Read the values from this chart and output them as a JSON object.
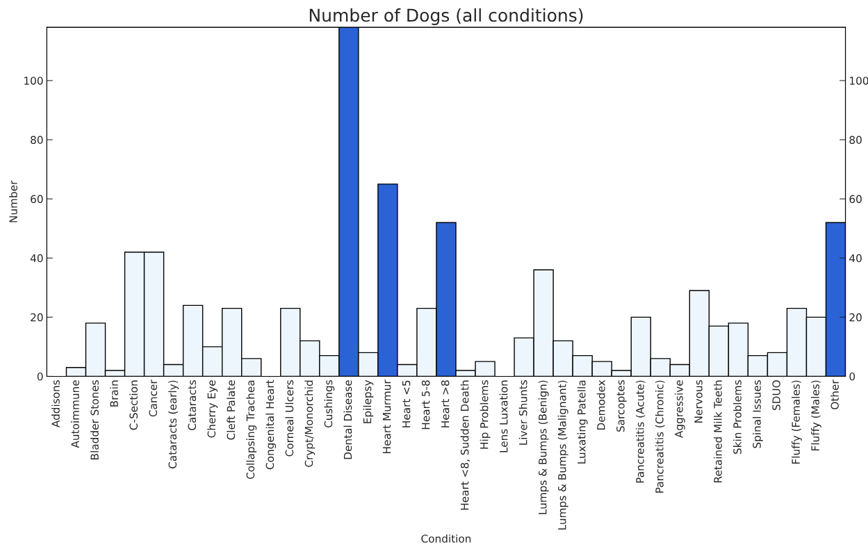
{
  "chart_data": {
    "type": "bar",
    "title": "Number of Dogs (all conditions)",
    "xlabel": "Condition",
    "ylabel": "Number",
    "categories": [
      "Addisons",
      "Autoimmune",
      "Bladder Stones",
      "Brain",
      "C-Section",
      "Cancer",
      "Cataracts (early)",
      "Cataracts",
      "Cherry Eye",
      "Cleft Palate",
      "Collapsing Trachea",
      "Congenital Heart",
      "Corneal Ulcers",
      "Crypt/Monorchid",
      "Cushings",
      "Dental Disease",
      "Epilepsy",
      "Heart Murmur",
      "Heart <5",
      "Heart 5-8",
      "Heart >8",
      "Heart <8, Sudden Death",
      "Hip Problems",
      "Lens Luxation",
      "Liver Shunts",
      "Lumps & Bumps (Benign)",
      "Lumps & Bumps (Malignant)",
      "Luxating Patella",
      "Demodex",
      "Sarcoptes",
      "Pancreatitis (Acute)",
      "Pancreatitis (Chronic)",
      "Aggressive",
      "Nervous",
      "Retained Milk Teeth",
      "Skin Problems",
      "Spinal Issues",
      "SDUO",
      "Fluffy (Females)",
      "Fluffy (Males)",
      "Other"
    ],
    "values": [
      0,
      3,
      18,
      2,
      42,
      42,
      4,
      24,
      10,
      23,
      6,
      0,
      23,
      12,
      7,
      118,
      8,
      65,
      4,
      23,
      52,
      2,
      5,
      0,
      13,
      36,
      12,
      7,
      5,
      2,
      20,
      6,
      4,
      29,
      17,
      18,
      7,
      8,
      23,
      20,
      52
    ],
    "colors": [
      "#eef6fd",
      "#eef6fd",
      "#eef6fd",
      "#eef6fd",
      "#eef6fd",
      "#eef6fd",
      "#eef6fd",
      "#eef6fd",
      "#eef6fd",
      "#eef6fd",
      "#eef6fd",
      "#eef6fd",
      "#eef6fd",
      "#eef6fd",
      "#eef6fd",
      "#2b62d6",
      "#eef6fd",
      "#2b62d6",
      "#eef6fd",
      "#eef6fd",
      "#2b62d6",
      "#eef6fd",
      "#eef6fd",
      "#eef6fd",
      "#eef6fd",
      "#eef6fd",
      "#eef6fd",
      "#eef6fd",
      "#eef6fd",
      "#eef6fd",
      "#eef6fd",
      "#eef6fd",
      "#eef6fd",
      "#eef6fd",
      "#eef6fd",
      "#eef6fd",
      "#eef6fd",
      "#eef6fd",
      "#eef6fd",
      "#eef6fd",
      "#2b62d6"
    ],
    "ylim": [
      0,
      118
    ],
    "yticks": [
      0,
      20,
      40,
      60,
      80,
      100
    ],
    "y2lim": [
      0,
      118
    ],
    "y2ticks": [
      0,
      20,
      40,
      60,
      80,
      100
    ],
    "grid": false,
    "legend": false
  }
}
